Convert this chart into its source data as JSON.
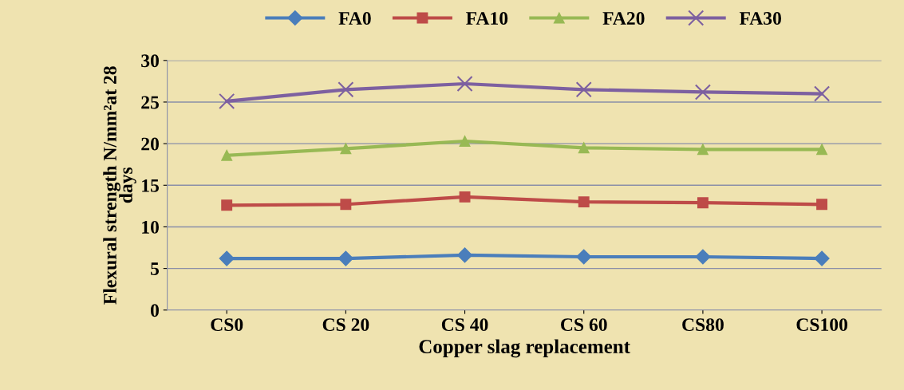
{
  "chart_data": {
    "type": "line",
    "xlabel": "Copper slag replacement",
    "ylabel": "Flexural strength N/mm²at 28\ndays",
    "categories": [
      "CS0",
      "CS 20",
      "CS 40",
      "CS 60",
      "CS80",
      "CS100"
    ],
    "series": [
      {
        "name": "FA0",
        "color": "#4a7ebb",
        "marker": "diamond",
        "values": [
          6.2,
          6.2,
          6.6,
          6.4,
          6.4,
          6.2
        ]
      },
      {
        "name": "FA10",
        "color": "#be4b48",
        "marker": "square",
        "values": [
          12.6,
          12.7,
          13.6,
          13.0,
          12.9,
          12.7
        ]
      },
      {
        "name": "FA20",
        "color": "#98b954",
        "marker": "triangle",
        "values": [
          18.6,
          19.4,
          20.3,
          19.5,
          19.3,
          19.3
        ]
      },
      {
        "name": "FA30",
        "color": "#7d60a0",
        "marker": "cross",
        "values": [
          25.1,
          26.5,
          27.2,
          26.5,
          26.2,
          26.0
        ]
      }
    ],
    "ylim": [
      0,
      30
    ],
    "yticks": [
      0,
      5,
      10,
      15,
      20,
      25,
      30
    ],
    "grid": "y",
    "legend": "top",
    "line_style": "solid"
  }
}
